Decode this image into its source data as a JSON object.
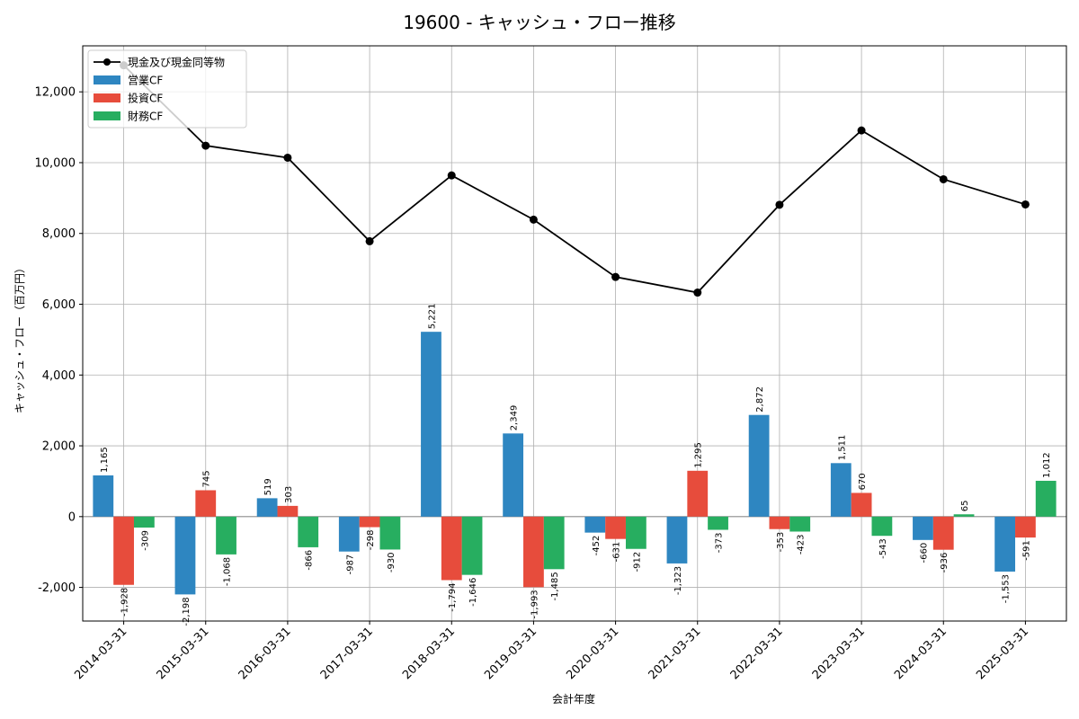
{
  "chart_data": {
    "type": "bar",
    "title": "19600 - キャッシュ・フロー推移",
    "xlabel": "会計年度",
    "ylabel": "キャッシュ・フロー（百万円）",
    "categories": [
      "2014-03-31",
      "2015-03-31",
      "2016-03-31",
      "2017-03-31",
      "2018-03-31",
      "2019-03-31",
      "2020-03-31",
      "2021-03-31",
      "2022-03-31",
      "2023-03-31",
      "2024-03-31",
      "2025-03-31"
    ],
    "series": [
      {
        "name": "営業CF",
        "kind": "bar",
        "color": "#2e86c1",
        "values": [
          1165,
          -2198,
          519,
          -987,
          5221,
          2349,
          -452,
          -1323,
          2872,
          1511,
          -660,
          -1553
        ],
        "labels": [
          "1,165",
          "-2,198",
          "519",
          "-987",
          "5,221",
          "2,349",
          "-452",
          "-1,323",
          "2,872",
          "1,511",
          "-660",
          "-1,553"
        ]
      },
      {
        "name": "投資CF",
        "kind": "bar",
        "color": "#e74c3c",
        "values": [
          -1928,
          745,
          303,
          -298,
          -1794,
          -1993,
          -631,
          1295,
          -353,
          670,
          -936,
          -591
        ],
        "labels": [
          "-1,928",
          "745",
          "303",
          "-298",
          "-1,794",
          "-1,993",
          "-631",
          "1,295",
          "-353",
          "670",
          "-936",
          "-591"
        ]
      },
      {
        "name": "財務CF",
        "kind": "bar",
        "color": "#27ae60",
        "values": [
          -309,
          -1068,
          -866,
          -930,
          -1646,
          -1485,
          -912,
          -373,
          -423,
          -543,
          65,
          1012
        ],
        "labels": [
          "-309",
          "-1,068",
          "-866",
          "-930",
          "-1,646",
          "-1,485",
          "-912",
          "-373",
          "-423",
          "-543",
          "65",
          "1,012"
        ]
      },
      {
        "name": "現金及び現金同等物",
        "kind": "line",
        "color": "#000000",
        "values": [
          12750,
          10480,
          10140,
          7780,
          9640,
          8390,
          6770,
          6330,
          8810,
          10910,
          9530,
          8820
        ]
      }
    ],
    "yticks": [
      -2000,
      0,
      2000,
      4000,
      6000,
      8000,
      10000,
      12000
    ],
    "ytick_labels": [
      "-2,000",
      "0",
      "2,000",
      "4,000",
      "6,000",
      "8,000",
      "10,000",
      "12,000"
    ],
    "ylim": [
      -2950,
      13300
    ],
    "grid": true,
    "legend_position": "top-left"
  }
}
